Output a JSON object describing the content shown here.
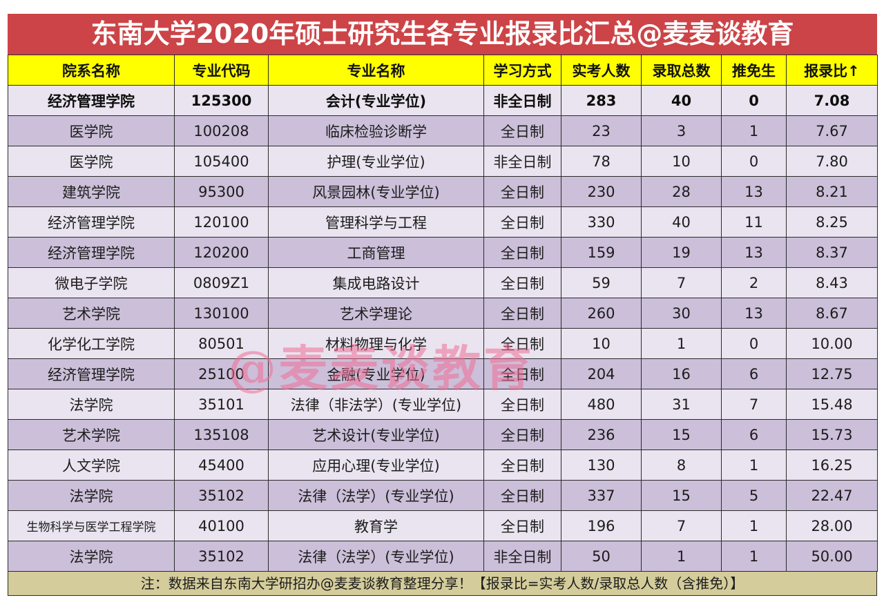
{
  "title": "东南大学2020年硕士研究生各专业报录比汇总@麦麦谈教育",
  "table": {
    "headers": [
      "院系名称",
      "专业代码",
      "专业名称",
      "学习方式",
      "实考人数",
      "录取总数",
      "推免生",
      "报录比↑"
    ],
    "rows": [
      {
        "dept": "经济管理学院",
        "code": "125300",
        "major": "会计(专业学位)",
        "mode": "非全日制",
        "examinees": "283",
        "admitted": "40",
        "exempt": "0",
        "ratio": "7.08"
      },
      {
        "dept": "医学院",
        "code": "100208",
        "major": "临床检验诊断学",
        "mode": "全日制",
        "examinees": "23",
        "admitted": "3",
        "exempt": "1",
        "ratio": "7.67"
      },
      {
        "dept": "医学院",
        "code": "105400",
        "major": "护理(专业学位)",
        "mode": "非全日制",
        "examinees": "78",
        "admitted": "10",
        "exempt": "0",
        "ratio": "7.80"
      },
      {
        "dept": "建筑学院",
        "code": "95300",
        "major": "风景园林(专业学位)",
        "mode": "全日制",
        "examinees": "230",
        "admitted": "28",
        "exempt": "13",
        "ratio": "8.21"
      },
      {
        "dept": "经济管理学院",
        "code": "120100",
        "major": "管理科学与工程",
        "mode": "全日制",
        "examinees": "330",
        "admitted": "40",
        "exempt": "11",
        "ratio": "8.25"
      },
      {
        "dept": "经济管理学院",
        "code": "120200",
        "major": "工商管理",
        "mode": "全日制",
        "examinees": "159",
        "admitted": "19",
        "exempt": "13",
        "ratio": "8.37"
      },
      {
        "dept": "微电子学院",
        "code": "0809Z1",
        "major": "集成电路设计",
        "mode": "全日制",
        "examinees": "59",
        "admitted": "7",
        "exempt": "2",
        "ratio": "8.43"
      },
      {
        "dept": "艺术学院",
        "code": "130100",
        "major": "艺术学理论",
        "mode": "全日制",
        "examinees": "260",
        "admitted": "30",
        "exempt": "13",
        "ratio": "8.67"
      },
      {
        "dept": "化学化工学院",
        "code": "80501",
        "major": "材料物理与化学",
        "mode": "全日制",
        "examinees": "10",
        "admitted": "1",
        "exempt": "0",
        "ratio": "10.00"
      },
      {
        "dept": "经济管理学院",
        "code": "25100",
        "major": "金融(专业学位)",
        "mode": "全日制",
        "examinees": "204",
        "admitted": "16",
        "exempt": "6",
        "ratio": "12.75"
      },
      {
        "dept": "法学院",
        "code": "35101",
        "major": "法律（非法学）(专业学位)",
        "mode": "全日制",
        "examinees": "480",
        "admitted": "31",
        "exempt": "7",
        "ratio": "15.48"
      },
      {
        "dept": "艺术学院",
        "code": "135108",
        "major": "艺术设计(专业学位)",
        "mode": "全日制",
        "examinees": "236",
        "admitted": "15",
        "exempt": "6",
        "ratio": "15.73"
      },
      {
        "dept": "人文学院",
        "code": "45400",
        "major": "应用心理(专业学位)",
        "mode": "全日制",
        "examinees": "130",
        "admitted": "8",
        "exempt": "1",
        "ratio": "16.25"
      },
      {
        "dept": "法学院",
        "code": "35102",
        "major": "法律（法学）(专业学位)",
        "mode": "全日制",
        "examinees": "337",
        "admitted": "15",
        "exempt": "5",
        "ratio": "22.47"
      },
      {
        "dept": "生物科学与医学工程学院",
        "code": "40100",
        "major": "教育学",
        "mode": "全日制",
        "examinees": "196",
        "admitted": "7",
        "exempt": "1",
        "ratio": "28.00"
      },
      {
        "dept": "法学院",
        "code": "35102",
        "major": "法律（法学）(专业学位)",
        "mode": "非全日制",
        "examinees": "50",
        "admitted": "1",
        "exempt": "1",
        "ratio": "50.00"
      }
    ]
  },
  "footer": "注：数据来自东南大学研招办@麦麦谈教育整理分享！【报录比=实考人数/录取总人数（含推免）】",
  "watermark": "@麦麦谈教育",
  "colors": {
    "title_bg": "#cc4447",
    "header_bg": "#ffff00",
    "row_light": "#e9e4ef",
    "row_dark": "#cbbfd9",
    "footer_bg": "#d4cc9a",
    "watermark": "#f06e96"
  }
}
